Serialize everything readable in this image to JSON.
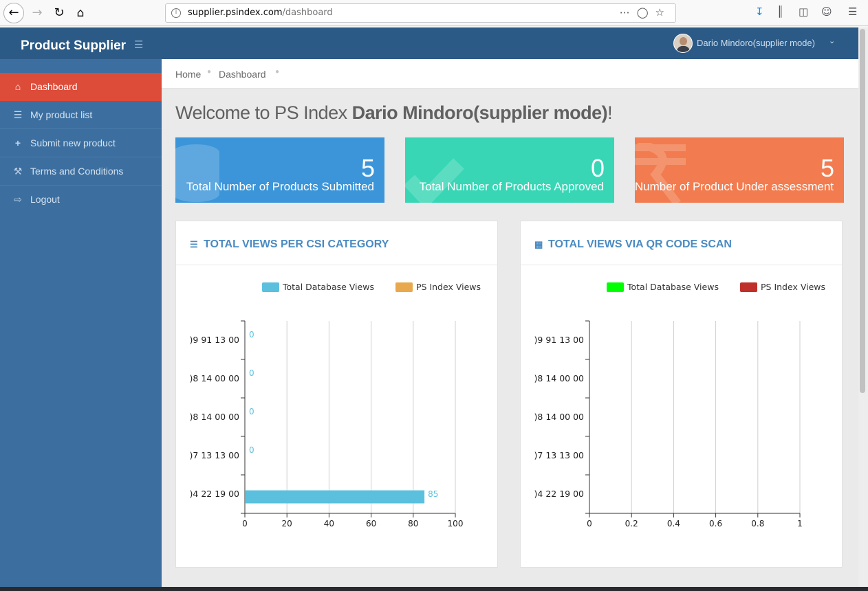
{
  "browser": {
    "url_host": "supplier.psindex.com",
    "url_path": "/dashboard"
  },
  "sidebar": {
    "brand": "Product Supplier",
    "items": [
      {
        "label": "Dashboard",
        "icon": "home-icon",
        "active": true
      },
      {
        "label": "My product list",
        "icon": "list-icon",
        "active": false
      },
      {
        "label": "Submit new product",
        "icon": "plus-icon",
        "active": false
      },
      {
        "label": "Terms and Conditions",
        "icon": "gavel-icon",
        "active": false
      },
      {
        "label": "Logout",
        "icon": "logout-icon",
        "active": false
      }
    ]
  },
  "topnav": {
    "user": "Dario Mindoro(supplier mode)"
  },
  "breadcrumb": [
    "Home",
    "Dashboard"
  ],
  "main": {
    "welcome_prefix": "Welcome to PS Index ",
    "welcome_name": "Dario Mindoro(supplier mode)",
    "welcome_suffix": "!"
  },
  "stats": [
    {
      "value": "5",
      "label": "Total Number of Products Submitted",
      "color": "#3b95d8"
    },
    {
      "value": "0",
      "label": "Total Number of Products Approved",
      "color": "#38d6b5"
    },
    {
      "value": "5",
      "label": "Number of Product Under assessment",
      "color": "#f27c4f"
    }
  ],
  "panels": {
    "left_title": "TOTAL VIEWS PER CSI CATEGORY",
    "right_title": "TOTAL VIEWS VIA QR CODE SCAN"
  },
  "chart_data": [
    {
      "type": "bar",
      "orientation": "horizontal",
      "categories": [
        ")9 91 13 00",
        ")8 14 00 00",
        ")8 14 00 00",
        ")7 13 13 00",
        ")4 22 19 00"
      ],
      "series": [
        {
          "name": "Total Database Views",
          "color": "#5bc0de",
          "values": [
            0,
            0,
            0,
            0,
            85
          ]
        },
        {
          "name": "PS Index Views",
          "color": "#e8a94e",
          "values": [
            null,
            null,
            null,
            null,
            null
          ]
        }
      ],
      "data_labels": [
        "0",
        "0",
        "0",
        "0",
        "85"
      ],
      "xlim": [
        0,
        100
      ],
      "xticks": [
        0,
        20,
        40,
        60,
        80,
        100
      ],
      "grid": true,
      "legend": "top"
    },
    {
      "type": "bar",
      "orientation": "horizontal",
      "categories": [
        ")9 91 13 00",
        ")8 14 00 00",
        ")8 14 00 00",
        ")7 13 13 00",
        ")4 22 19 00"
      ],
      "series": [
        {
          "name": "Total Database Views",
          "color": "#00ff00",
          "values": [
            null,
            null,
            null,
            null,
            null
          ]
        },
        {
          "name": "PS Index Views",
          "color": "#c0302b",
          "values": [
            null,
            null,
            null,
            null,
            null
          ]
        }
      ],
      "xlim": [
        0,
        1
      ],
      "xticks": [
        0,
        0.2,
        0.4,
        0.6,
        0.8,
        1
      ],
      "grid": true,
      "legend": "top"
    }
  ]
}
